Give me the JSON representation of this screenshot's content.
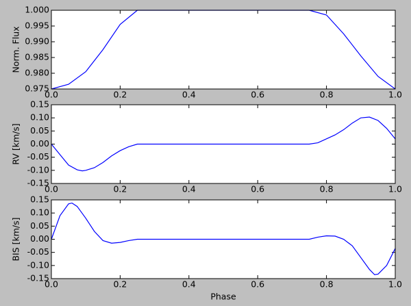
{
  "chart_data": [
    {
      "type": "line",
      "ylabel": "Norm. Flux",
      "color": "#0000ff",
      "x": [
        0,
        0.05,
        0.1,
        0.15,
        0.2,
        0.25,
        0.75,
        0.8,
        0.85,
        0.9,
        0.95,
        1.0
      ],
      "values": [
        0.975,
        0.9765,
        0.9805,
        0.9875,
        0.9955,
        1.0,
        1.0,
        0.9985,
        0.9925,
        0.9855,
        0.979,
        0.975
      ],
      "xlim": [
        0,
        1
      ],
      "ylim": [
        0.975,
        1.0
      ],
      "xticks": [
        {
          "value": 0,
          "label": "0.0"
        },
        0.2,
        0.4,
        0.6,
        0.8,
        {
          "value": 1,
          "label": "1.0"
        }
      ],
      "yticks": [
        0.975,
        {
          "value": 0.98,
          "label": "0.980"
        },
        0.985,
        {
          "value": 0.99,
          "label": "0.990"
        },
        0.995,
        {
          "value": 1.0,
          "label": "1.000"
        }
      ]
    },
    {
      "type": "line",
      "ylabel": "RV [km/s]",
      "color": "#0000ff",
      "x": [
        0,
        0.025,
        0.05,
        0.075,
        0.09,
        0.1,
        0.125,
        0.15,
        0.175,
        0.2,
        0.225,
        0.25,
        0.75,
        0.775,
        0.8,
        0.825,
        0.85,
        0.875,
        0.9,
        0.925,
        0.95,
        0.975,
        1.0
      ],
      "values": [
        0,
        -0.04,
        -0.08,
        -0.098,
        -0.102,
        -0.1,
        -0.09,
        -0.07,
        -0.045,
        -0.025,
        -0.01,
        0,
        0,
        0.005,
        0.02,
        0.035,
        0.055,
        0.08,
        0.1,
        0.103,
        0.09,
        0.06,
        0.02
      ],
      "xlim": [
        0,
        1
      ],
      "ylim": [
        -0.15,
        0.15
      ],
      "xticks": [
        {
          "value": 0,
          "label": "0.0"
        },
        0.2,
        0.4,
        0.6,
        0.8,
        {
          "value": 1,
          "label": "1.0"
        }
      ],
      "yticks": [
        -0.15,
        {
          "value": -0.1,
          "label": "-0.10"
        },
        -0.05,
        {
          "value": 0,
          "label": "0.00"
        },
        0.05,
        {
          "value": 0.1,
          "label": "0.10"
        },
        0.15
      ]
    },
    {
      "type": "line",
      "ylabel": "BIS [km/s]",
      "xlabel": "Phase",
      "color": "#0000ff",
      "x": [
        0,
        0.025,
        0.05,
        0.06,
        0.075,
        0.1,
        0.125,
        0.15,
        0.175,
        0.2,
        0.225,
        0.25,
        0.75,
        0.775,
        0.8,
        0.825,
        0.85,
        0.875,
        0.9,
        0.925,
        0.94,
        0.95,
        0.975,
        1.0
      ],
      "values": [
        0,
        0.09,
        0.135,
        0.138,
        0.125,
        0.08,
        0.03,
        -0.005,
        -0.015,
        -0.012,
        -0.005,
        0,
        0,
        0.008,
        0.013,
        0.012,
        0,
        -0.025,
        -0.07,
        -0.115,
        -0.135,
        -0.133,
        -0.1,
        -0.035
      ],
      "xlim": [
        0,
        1
      ],
      "ylim": [
        -0.15,
        0.15
      ],
      "xticks": [
        {
          "value": 0,
          "label": "0.0"
        },
        0.2,
        0.4,
        0.6,
        0.8,
        {
          "value": 1,
          "label": "1.0"
        }
      ],
      "yticks": [
        -0.15,
        {
          "value": -0.1,
          "label": "-0.10"
        },
        -0.05,
        {
          "value": 0,
          "label": "0.00"
        },
        0.05,
        {
          "value": 0.1,
          "label": "0.10"
        },
        0.15
      ]
    }
  ]
}
